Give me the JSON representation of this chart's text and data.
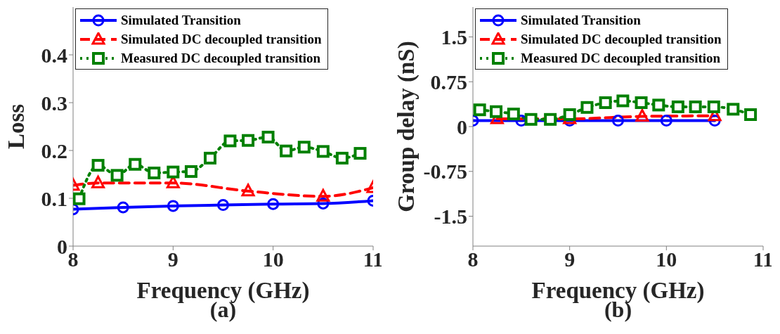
{
  "chart_data": [
    {
      "type": "line",
      "xlabel": "Frequency (GHz)",
      "ylabel": "Loss",
      "annotations": [
        "(a)"
      ],
      "xlim": [
        8,
        11
      ],
      "xticks": [
        8,
        9,
        10,
        11
      ],
      "ylim": [
        0,
        0.5
      ],
      "yticks": [
        0,
        0.1,
        0.2,
        0.3,
        0.4
      ],
      "grid": false,
      "legend": "top left",
      "series": [
        {
          "name": "Simulated Transition",
          "color": "#0000ff",
          "marker": "circle",
          "line_style": "solid",
          "x": [
            8,
            8.5,
            9,
            9.5,
            10,
            10.5,
            11
          ],
          "values": [
            0.077,
            0.081,
            0.084,
            0.086,
            0.088,
            0.089,
            0.095
          ]
        },
        {
          "name": "Simulated DC decoupled transition",
          "color": "#ff0000",
          "marker": "triangle",
          "line_style": "dashed",
          "x": [
            8,
            8.25,
            9,
            9.75,
            10.5,
            11
          ],
          "values": [
            0.127,
            0.132,
            0.132,
            0.115,
            0.104,
            0.122
          ]
        },
        {
          "name": "Measured DC decoupled transition",
          "color": "#008000",
          "marker": "square",
          "line_style": "dotted",
          "x": [
            8.06,
            8.25,
            8.44,
            8.62,
            8.81,
            9,
            9.18,
            9.37,
            9.57,
            9.75,
            9.95,
            10.13,
            10.31,
            10.5,
            10.69,
            10.87
          ],
          "values": [
            0.099,
            0.169,
            0.148,
            0.171,
            0.153,
            0.155,
            0.156,
            0.184,
            0.22,
            0.221,
            0.228,
            0.199,
            0.207,
            0.198,
            0.184,
            0.194
          ]
        }
      ]
    },
    {
      "type": "line",
      "xlabel": "Frequency (GHz)",
      "ylabel": "Group delay (nS)",
      "annotations": [
        "(b)"
      ],
      "xlim": [
        8,
        11
      ],
      "xticks": [
        8,
        9,
        10,
        11
      ],
      "ylim": [
        -2,
        2
      ],
      "yticks": [
        -1.5,
        -0.75,
        0,
        0.75,
        1.5
      ],
      "grid": false,
      "legend": "top left",
      "series": [
        {
          "name": "Simulated Transition",
          "color": "#0000ff",
          "marker": "circle",
          "line_style": "solid",
          "x": [
            8,
            8.5,
            9,
            9.5,
            10,
            10.5
          ],
          "values": [
            0.1,
            0.1,
            0.1,
            0.1,
            0.1,
            0.1
          ]
        },
        {
          "name": "Simulated DC decoupled transition",
          "color": "#ff0000",
          "marker": "triangle",
          "line_style": "dashed",
          "x": [
            8.25,
            9,
            9.75,
            10.5
          ],
          "values": [
            0.13,
            0.13,
            0.17,
            0.18
          ]
        },
        {
          "name": "Measured DC decoupled transition",
          "color": "#008000",
          "marker": "square",
          "line_style": "dotted",
          "x": [
            8.07,
            8.24,
            8.42,
            8.6,
            8.8,
            9,
            9.18,
            9.37,
            9.55,
            9.74,
            9.92,
            10.12,
            10.3,
            10.49,
            10.69,
            10.87
          ],
          "values": [
            0.28,
            0.25,
            0.21,
            0.12,
            0.12,
            0.2,
            0.32,
            0.4,
            0.43,
            0.4,
            0.36,
            0.33,
            0.33,
            0.33,
            0.29,
            0.2
          ]
        }
      ]
    }
  ]
}
